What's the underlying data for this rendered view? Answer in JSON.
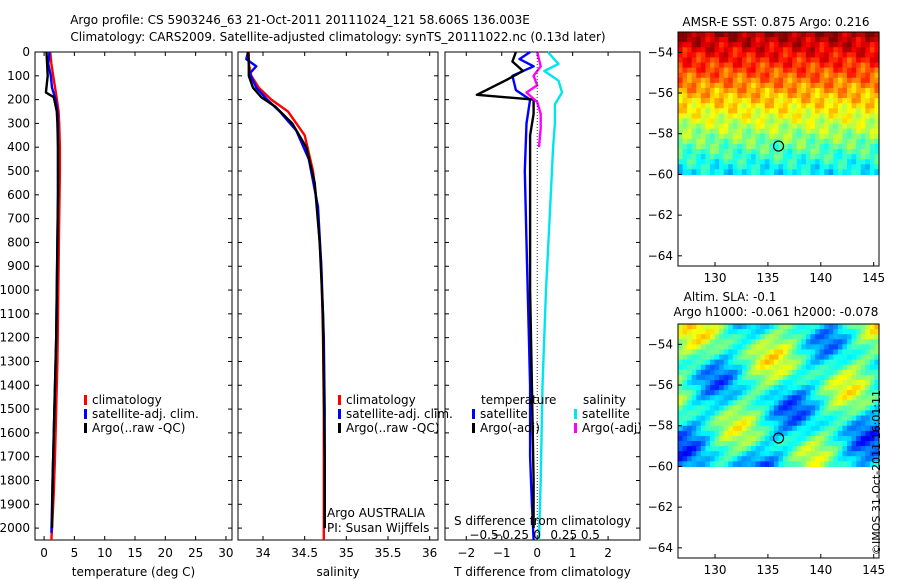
{
  "header": {
    "line1": "Argo profile: CS 5903246_63 21-Oct-2011 20111024_121 58.606S 136.003E",
    "line2": "Climatology: CARS2009. Satellite-adjusted climatology: synTS_20111022.nc (0.13d later)"
  },
  "stamp": "©IMOS 31-Oct-2011 16:01:11",
  "colors": {
    "climatology": "#ff0000",
    "satellite": "#0000ff",
    "argo": "#000000",
    "satellite_salinity": "#00e5ee",
    "argo_salinity": "#ff00ff"
  },
  "chart_data": [
    {
      "id": "temperature",
      "type": "line",
      "xlabel": "temperature (deg C)",
      "xlim": [
        -1.5,
        31
      ],
      "xticks": [
        0,
        5,
        10,
        15,
        20,
        25,
        30
      ],
      "xtick_labels": [
        "0",
        "5",
        "10",
        "15",
        "20",
        "25",
        "30"
      ],
      "ylim": [
        0,
        2050
      ],
      "yticks": [
        0,
        100,
        200,
        300,
        400,
        500,
        600,
        700,
        800,
        900,
        1000,
        1100,
        1200,
        1300,
        1400,
        1500,
        1600,
        1700,
        1800,
        1900,
        2000
      ],
      "ytick_labels": [
        "0",
        "100",
        "200",
        "300",
        "400",
        "500",
        "600",
        "700",
        "800",
        "900",
        "1000",
        "1100",
        "1200",
        "1300",
        "1400",
        "1500",
        "1600",
        "1700",
        "1800",
        "1900",
        "2000"
      ],
      "legend": [
        "climatology",
        "satellite-adj. clim.",
        "Argo(..raw -QC)"
      ],
      "legend_placement": "lower-center",
      "series": [
        {
          "key": "climatology",
          "x": [
            1.0,
            1.2,
            1.5,
            2.0,
            2.4,
            2.5,
            2.6,
            2.6,
            2.5,
            2.4,
            2.3,
            2.2,
            2.0,
            1.8,
            1.6,
            1.4,
            1.2
          ],
          "y": [
            0,
            50,
            100,
            180,
            250,
            300,
            400,
            500,
            700,
            900,
            1100,
            1300,
            1500,
            1700,
            1850,
            1950,
            2050
          ]
        },
        {
          "key": "satellite",
          "x": [
            0.9,
            0.7,
            1.1,
            1.3,
            1.9,
            2.2,
            2.3,
            2.3,
            2.3,
            2.2,
            2.1,
            2.0,
            1.8,
            1.6,
            1.4,
            1.2
          ],
          "y": [
            0,
            50,
            100,
            150,
            200,
            250,
            300,
            400,
            600,
            800,
            1000,
            1200,
            1400,
            1600,
            1800,
            2020
          ]
        },
        {
          "key": "argo",
          "x": [
            0.4,
            0.5,
            0.6,
            0.3,
            1.6,
            2.1,
            2.2,
            2.3,
            2.3,
            2.2,
            2.1,
            2.0,
            1.8,
            1.6,
            1.4,
            1.3
          ],
          "y": [
            0,
            50,
            100,
            170,
            190,
            250,
            300,
            400,
            600,
            800,
            1000,
            1200,
            1400,
            1600,
            1800,
            2000
          ]
        }
      ]
    },
    {
      "id": "salinity",
      "type": "line",
      "xlabel": "salinity",
      "xlim": [
        33.7,
        36.1
      ],
      "xticks": [
        34,
        34.5,
        35,
        35.5,
        36
      ],
      "xtick_labels": [
        "34",
        "34.5",
        "35",
        "35.5",
        "36"
      ],
      "ylim": [
        0,
        2050
      ],
      "yticks": [
        0,
        100,
        200,
        300,
        400,
        500,
        600,
        700,
        800,
        900,
        1000,
        1100,
        1200,
        1300,
        1400,
        1500,
        1600,
        1700,
        1800,
        1900,
        2000
      ],
      "legend": [
        "climatology",
        "satellite-adj. clim.",
        "Argo(..raw -QC)"
      ],
      "legend_placement": "lower-center",
      "annotation": [
        "Argo AUSTRALIA",
        "PI: Susan Wijffels"
      ],
      "series": [
        {
          "key": "climatology",
          "x": [
            33.83,
            33.83,
            33.86,
            33.95,
            34.1,
            34.3,
            34.5,
            34.6,
            34.65,
            34.7,
            34.72,
            34.73,
            34.73,
            34.73
          ],
          "y": [
            0,
            50,
            100,
            150,
            200,
            250,
            350,
            500,
            650,
            900,
            1200,
            1500,
            1800,
            2050
          ]
        },
        {
          "key": "satellite",
          "x": [
            33.82,
            33.8,
            33.92,
            33.84,
            33.92,
            34.05,
            34.2,
            34.4,
            34.55,
            34.66,
            34.7,
            34.73,
            34.74,
            34.74,
            34.74
          ],
          "y": [
            0,
            30,
            60,
            90,
            150,
            200,
            250,
            330,
            450,
            650,
            900,
            1200,
            1500,
            1800,
            2000
          ]
        },
        {
          "key": "argo",
          "x": [
            33.82,
            33.83,
            33.83,
            33.88,
            33.98,
            34.15,
            34.35,
            34.52,
            34.62,
            34.68,
            34.72,
            34.73,
            34.74,
            34.74
          ],
          "y": [
            0,
            50,
            100,
            150,
            190,
            230,
            300,
            400,
            550,
            800,
            1100,
            1400,
            1700,
            2000
          ]
        }
      ]
    },
    {
      "id": "difference",
      "type": "line",
      "xlabel": "T difference from climatology",
      "xlabel_top": "S difference from climatology",
      "xlim": [
        -2.6,
        2.9
      ],
      "xticks": [
        -2,
        -1,
        0,
        1,
        2
      ],
      "xtick_labels": [
        "−2",
        "−1",
        "0",
        "1",
        "2"
      ],
      "top_ticks_at_T": [
        -1.5,
        -0.75,
        0.0,
        0.75,
        1.5
      ],
      "top_tick_labels": [
        "−0.5",
        "−0.25",
        "0",
        "0.25",
        "0.5"
      ],
      "ylim": [
        0,
        2050
      ],
      "yticks": [
        0,
        100,
        200,
        300,
        400,
        500,
        600,
        700,
        800,
        900,
        1000,
        1100,
        1200,
        1300,
        1400,
        1500,
        1600,
        1700,
        1800,
        1900,
        2000
      ],
      "legend_temperature": {
        "title": "temperature",
        "items": [
          "satellite",
          "Argo(-adj)"
        ]
      },
      "legend_salinity": {
        "title": "salinity",
        "items": [
          "satellite",
          "Argo(-adj)"
        ]
      },
      "series": [
        {
          "key": "satellite",
          "x": [
            -0.2,
            -0.5,
            -0.1,
            -0.7,
            -0.6,
            -0.2,
            -0.3,
            -0.35,
            -0.3,
            -0.25,
            -0.2,
            -0.2,
            -0.15,
            -0.1
          ],
          "y": [
            0,
            30,
            60,
            100,
            160,
            200,
            300,
            500,
            800,
            1100,
            1400,
            1700,
            1900,
            2050
          ]
        },
        {
          "key": "argo",
          "x": [
            -0.6,
            -0.7,
            -0.4,
            -0.9,
            -1.7,
            -0.1,
            -0.1,
            -0.2,
            -0.2,
            -0.2,
            -0.15,
            -0.1,
            -0.1
          ],
          "y": [
            0,
            40,
            80,
            120,
            180,
            200,
            260,
            350,
            600,
            1000,
            1400,
            1800,
            2000
          ]
        },
        {
          "key": "satellite_salinity",
          "x": [
            0.3,
            0.6,
            0.2,
            0.6,
            0.7,
            0.5,
            0.5,
            0.45,
            0.35,
            0.25,
            0.15,
            0.1,
            0.05
          ],
          "y": [
            0,
            50,
            80,
            120,
            170,
            220,
            300,
            400,
            700,
            1000,
            1400,
            1800,
            2050
          ]
        },
        {
          "key": "argo_salinity",
          "x": [
            0.0,
            0.1,
            -0.1,
            0.0,
            -0.3,
            0.0,
            0.1,
            0.1,
            0.05
          ],
          "y": [
            0,
            60,
            100,
            140,
            170,
            210,
            260,
            320,
            400
          ]
        }
      ]
    },
    {
      "id": "sst_map",
      "type": "heatmap",
      "title": "AMSR-E SST: 0.875 Argo: 0.216",
      "xlim": [
        126.5,
        145.5
      ],
      "ylim": [
        -64.5,
        -53
      ],
      "xticks": [
        130,
        135,
        140,
        145
      ],
      "yticks": [
        -54,
        -56,
        -58,
        -60,
        -62,
        -64
      ],
      "ytick_labels": [
        "−54",
        "−56",
        "−58",
        "−60",
        "−62",
        "−64"
      ],
      "data_south_limit": -60,
      "argo_location": {
        "lon": 136.003,
        "lat": -58.606
      },
      "colormap": "jet"
    },
    {
      "id": "sla_map",
      "type": "heatmap",
      "title": "Altim. SLA: -0.1",
      "subtitle": "Argo h1000: -0.061 h2000: -0.078",
      "xlim": [
        126.5,
        145.5
      ],
      "ylim": [
        -64.5,
        -53
      ],
      "xticks": [
        130,
        135,
        140,
        145
      ],
      "yticks": [
        -54,
        -56,
        -58,
        -60,
        -62,
        -64
      ],
      "ytick_labels": [
        "−54",
        "−56",
        "−58",
        "−60",
        "−62",
        "−64"
      ],
      "data_south_limit": -60,
      "argo_location": {
        "lon": 136.003,
        "lat": -58.606
      },
      "colormap": "jet"
    }
  ]
}
